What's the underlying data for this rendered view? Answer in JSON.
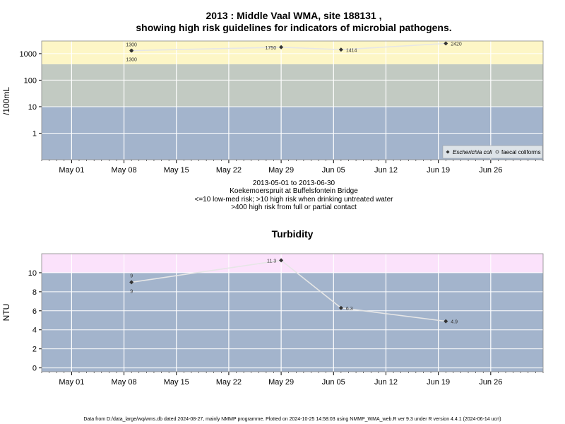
{
  "page": {
    "title_line1": "2013 : Middle Vaal WMA, site 188131 ,",
    "title_line2": "showing high risk guidelines for indicators of microbial pathogens.",
    "date_range": "2013-05-01 to 2013-06-30",
    "site_name": "Koekemoerspruit at Buffelsfontein Bridge",
    "note_line1": "<=10 low-med risk; >10 high risk when drinking untreated water",
    "note_line2": ">400 high risk from full or partial contact",
    "footer": "Data from D:/data_large/wq/wms.db dated 2024-08-27, mainly NMMP programme. Plotted on 2024-10-25 14:58:03 using NMMP_WMA_web.R ver 9.3 under R version 4.4.1 (2024-06-14 ucrt)"
  },
  "colors": {
    "band_low": "#a3b4cc",
    "band_mid": "#c2cac2",
    "band_high": "#fdf6c6",
    "band_turb_high": "#fbe2fb",
    "grid": "#ffffff",
    "line": "#e6e6e6",
    "point": "#333333"
  },
  "chart_data": [
    {
      "type": "line",
      "title": "",
      "xlabel": "",
      "ylabel": "/100mL",
      "yscale": "log",
      "ylim": [
        0.1,
        3000
      ],
      "yticks": [
        1,
        10,
        100,
        1000
      ],
      "ytick_labels": [
        "1",
        "10",
        "100",
        "1000"
      ],
      "x_range": [
        "2013-04-27",
        "2013-07-03"
      ],
      "x_ticks": [
        "2013-05-01",
        "2013-05-08",
        "2013-05-15",
        "2013-05-22",
        "2013-05-29",
        "2013-06-05",
        "2013-06-12",
        "2013-06-19",
        "2013-06-26"
      ],
      "x_tick_labels": [
        "May 01",
        "May 08",
        "May 15",
        "May 22",
        "May 29",
        "Jun 05",
        "Jun 12",
        "Jun 19",
        "Jun 26"
      ],
      "bands": [
        {
          "from": 0.1,
          "to": 10,
          "color": "#a3b4cc"
        },
        {
          "from": 10,
          "to": 400,
          "color": "#c2cac2"
        },
        {
          "from": 400,
          "to": 3000,
          "color": "#fdf6c6"
        }
      ],
      "grid": true,
      "legend": {
        "position": "bottom-right",
        "entries": [
          "Escherichia coli",
          "faecal coliforms"
        ]
      },
      "series": [
        {
          "name": "Escherichia coli",
          "marker": "filled-diamond",
          "x": [
            "2013-05-09",
            "2013-05-29",
            "2013-06-06",
            "2013-06-20"
          ],
          "y": [
            1300,
            1750,
            1414,
            2420
          ],
          "labels": [
            "1300",
            "1750",
            "1414",
            "2420"
          ]
        },
        {
          "name": "faecal coliforms",
          "marker": "open-circle",
          "x": [
            "2013-05-09"
          ],
          "y": [
            1300
          ],
          "labels": [
            "1300"
          ]
        }
      ]
    },
    {
      "type": "line",
      "title": "Turbidity",
      "xlabel": "",
      "ylabel": "NTU",
      "ylim": [
        -0.4,
        12
      ],
      "yticks": [
        0,
        2,
        4,
        6,
        8,
        10
      ],
      "ytick_labels": [
        "0",
        "2",
        "4",
        "6",
        "8",
        "10"
      ],
      "x_range": [
        "2013-04-27",
        "2013-07-03"
      ],
      "x_ticks": [
        "2013-05-01",
        "2013-05-08",
        "2013-05-15",
        "2013-05-22",
        "2013-05-29",
        "2013-06-05",
        "2013-06-12",
        "2013-06-19",
        "2013-06-26"
      ],
      "x_tick_labels": [
        "May 01",
        "May 08",
        "May 15",
        "May 22",
        "May 29",
        "Jun 05",
        "Jun 12",
        "Jun 19",
        "Jun 26"
      ],
      "bands": [
        {
          "from": -0.4,
          "to": 10,
          "color": "#a3b4cc"
        },
        {
          "from": 10,
          "to": 12,
          "color": "#fbe2fb"
        }
      ],
      "grid": true,
      "series": [
        {
          "name": "",
          "marker": "filled-diamond",
          "x": [
            "2013-05-09",
            "2013-05-29",
            "2013-06-06",
            "2013-06-20"
          ],
          "y": [
            9,
            11.3,
            6.3,
            4.9
          ],
          "labels": [
            "9",
            "11.3",
            "6.3",
            "4.9"
          ],
          "labels_below": [
            "9"
          ]
        }
      ]
    }
  ]
}
